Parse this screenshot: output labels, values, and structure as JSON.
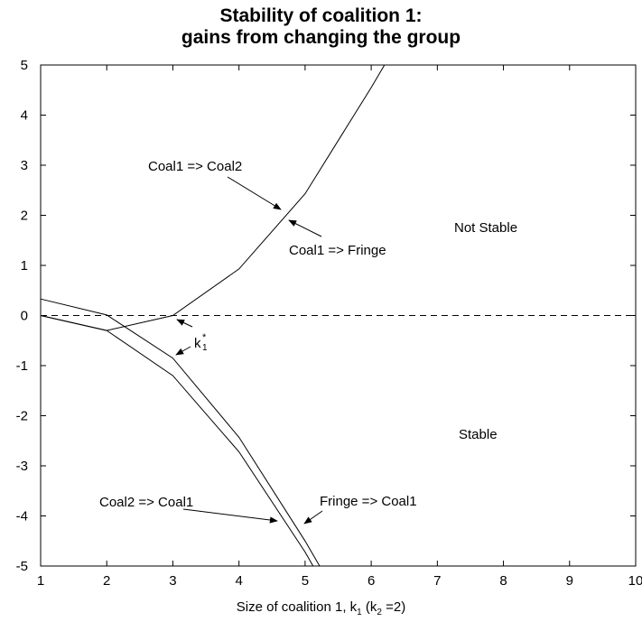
{
  "chart_data": {
    "type": "line",
    "title_line1": "Stability of coalition 1:",
    "title_line2": "gains from changing the group",
    "xlabel_prefix": "Size of coalition 1, k",
    "xlabel_sub1": "1",
    "xlabel_mid": " (k",
    "xlabel_sub2": "2",
    "xlabel_suffix": " =2)",
    "ylabel": "",
    "xlim": [
      1,
      10
    ],
    "ylim": [
      -5,
      5
    ],
    "xticks": [
      1,
      2,
      3,
      4,
      5,
      6,
      7,
      8,
      9,
      10
    ],
    "yticks": [
      -5,
      -4,
      -3,
      -2,
      -1,
      0,
      1,
      2,
      3,
      4,
      5
    ],
    "series": [
      {
        "name": "Coal1 => Coal2",
        "x": [
          1,
          2,
          3,
          4,
          5,
          6,
          6.2
        ],
        "y": [
          0,
          -0.3,
          0,
          0.93,
          2.43,
          4.55,
          5
        ]
      },
      {
        "name": "Coal2 => Coal1",
        "x": [
          1,
          2,
          3,
          4,
          5,
          5.12
        ],
        "y": [
          0,
          -0.3,
          -1.2,
          -2.72,
          -4.72,
          -5
        ]
      },
      {
        "name": "Fringe => Coal1",
        "x": [
          1,
          2,
          3,
          4,
          5,
          5.22
        ],
        "y": [
          0.33,
          0.01,
          -0.85,
          -2.43,
          -4.5,
          -5
        ]
      }
    ],
    "reference_line": {
      "y": 0,
      "style": "dashed"
    },
    "annotations": {
      "coal1_coal2": "Coal1 => Coal2",
      "coal1_fringe": "Coal1 => Fringe",
      "not_stable": "Not Stable",
      "stable": "Stable",
      "coal2_coal1": "Coal2 => Coal1",
      "fringe_coal1": "Fringe => Coal1",
      "kstar_base": "k",
      "kstar_sub": "1",
      "kstar_sup": "*"
    },
    "grid": false,
    "legend": "none"
  }
}
